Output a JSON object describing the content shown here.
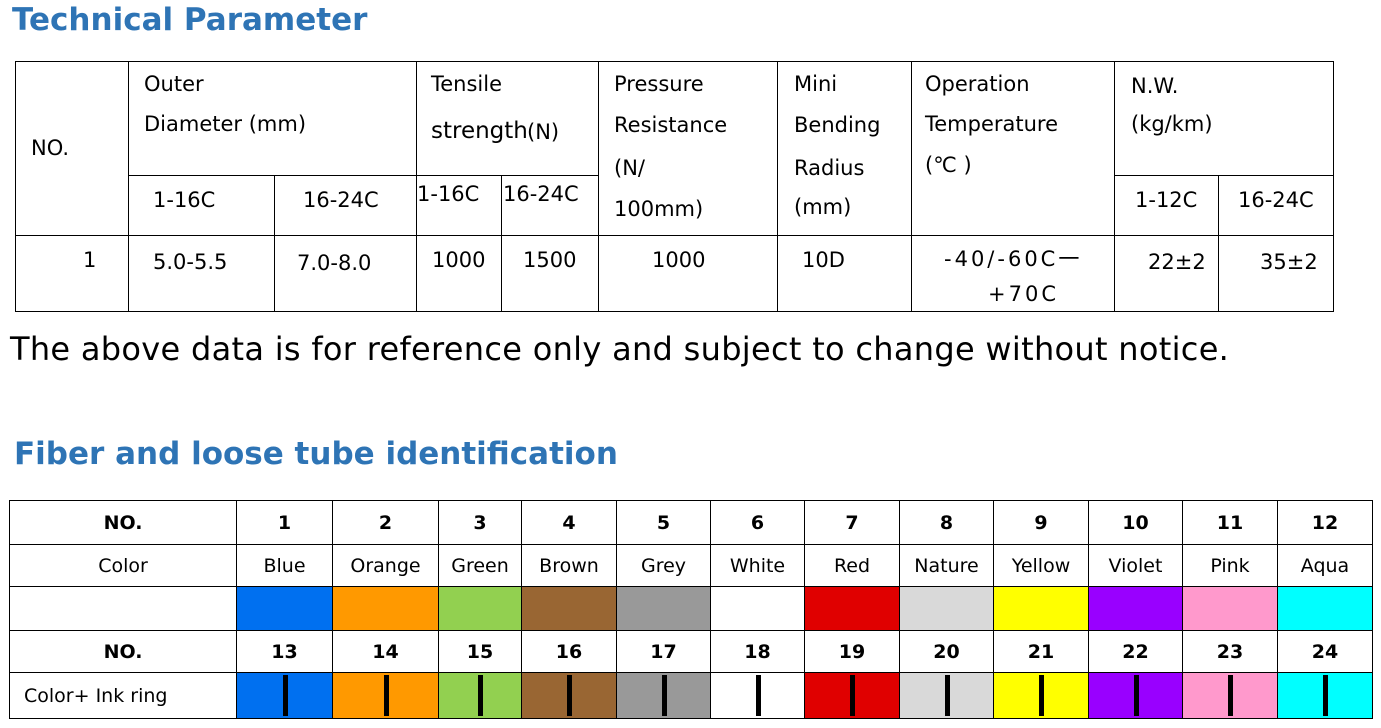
{
  "heading1": "Technical Parameter",
  "heading2": "Fiber and loose tube identification",
  "note": "The above data is for reference only and subject to change without notice.",
  "tech": {
    "no_label": "NO.",
    "outer_l1": "Outer",
    "outer_l2": "Diameter (mm)",
    "tensile_l1": "Tensile",
    "tensile_l2": "strength",
    "tensile_unit": "(N)",
    "pressure_l1": "Pressure",
    "pressure_l2": "Resistance",
    "pressure_l3": "(N/",
    "pressure_l4": "100mm)",
    "bend_l1": "Mini",
    "bend_l2": "Bending",
    "bend_l3": "Radius",
    "bend_l4": "(mm)",
    "op_l1": "Operation",
    "op_l2": "Temperature",
    "op_l3": "(℃ )",
    "nw_l1": "N.W.",
    "nw_l2": "(kg/km)",
    "sub_od_1": "1-16C",
    "sub_od_2": "16-24C",
    "sub_ts_1": "1-16C",
    "sub_ts_2": "16-24C",
    "sub_nw_1": "1-12C",
    "sub_nw_2": "16-24C",
    "row": {
      "no": "1",
      "od1": "5.0-5.5",
      "od2": "7.0-8.0",
      "ts1": "1000",
      "ts2": "1500",
      "pr": "1000",
      "bend": "10D",
      "op_l1": "-40/-60C一",
      "op_l2": "+70C",
      "nw1": "22±2",
      "nw2": "35±2"
    }
  },
  "fiber": {
    "no_label": "NO.",
    "color_label": "Color",
    "ink_label": "Color+ Ink ring",
    "numbers_row1": [
      "1",
      "2",
      "3",
      "4",
      "5",
      "6",
      "7",
      "8",
      "9",
      "10",
      "11",
      "12"
    ],
    "names": [
      "Blue",
      "Orange",
      "Green",
      "Brown",
      "Grey",
      "White",
      "Red",
      "Nature",
      "Yellow",
      "Violet",
      "Pink",
      "Aqua"
    ],
    "numbers_row2": [
      "13",
      "14",
      "15",
      "16",
      "17",
      "18",
      "19",
      "20",
      "21",
      "22",
      "23",
      "24"
    ],
    "colors": [
      "#0070f0",
      "#ff9900",
      "#92d050",
      "#996633",
      "#999999",
      "#ffffff",
      "#e00000",
      "#d9d9d9",
      "#ffff00",
      "#9900ff",
      "#ff99cc",
      "#00ffff"
    ]
  }
}
